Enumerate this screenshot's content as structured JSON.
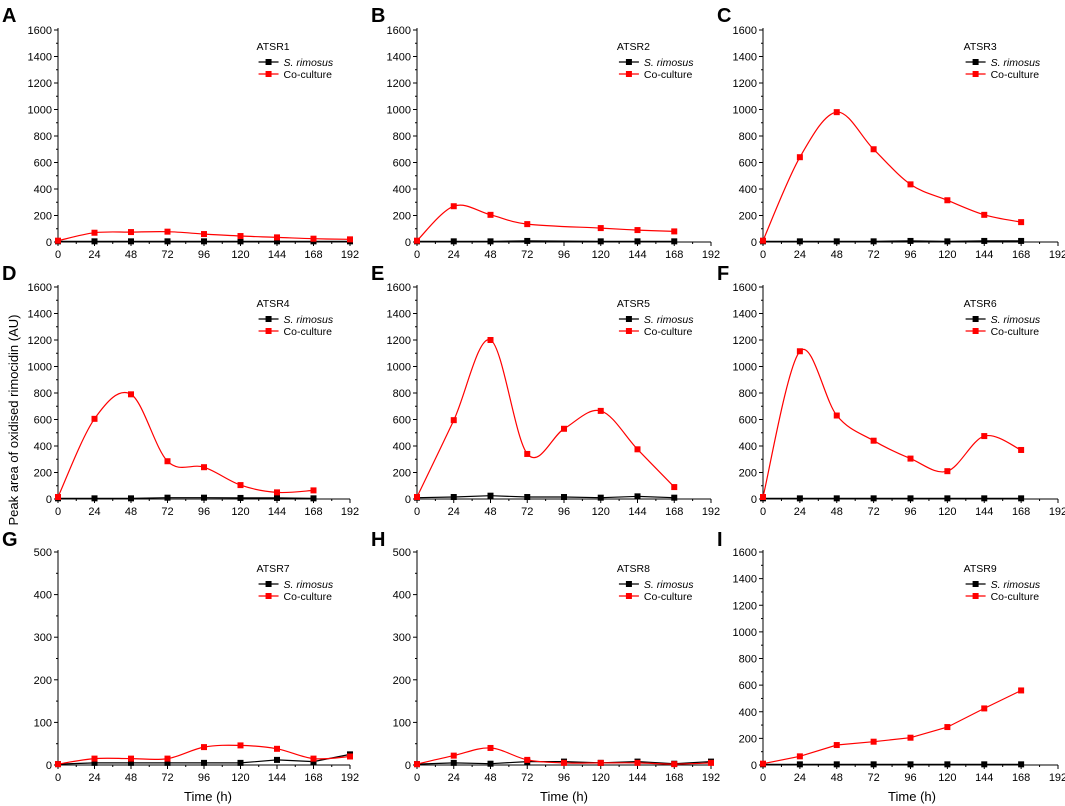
{
  "figure": {
    "ylabel": "Peak area of oxidised rimocidin (AU)",
    "xlabel": "Time (h)",
    "legend_series": [
      "S. rimosus",
      "Co-culture"
    ],
    "colors": {
      "s_rimosus": "#000000",
      "coculture": "#ff0000"
    }
  },
  "chart_data": [
    {
      "panel": "A",
      "type": "line",
      "title": "ATSR1",
      "xlim": [
        0,
        192
      ],
      "xticks": [
        0,
        24,
        48,
        72,
        96,
        120,
        144,
        168,
        192
      ],
      "ylim": [
        0,
        1600
      ],
      "yticks": [
        0,
        200,
        400,
        600,
        800,
        1000,
        1200,
        1400,
        1600
      ],
      "legend_position": "top-right",
      "series": [
        {
          "name": "S. rimosus",
          "style": "line",
          "x": [
            0,
            24,
            48,
            72,
            96,
            120,
            144,
            168,
            192
          ],
          "values": [
            5,
            5,
            5,
            5,
            5,
            5,
            5,
            5,
            5
          ]
        },
        {
          "name": "Co-culture",
          "style": "smooth",
          "x": [
            0,
            24,
            48,
            72,
            96,
            120,
            144,
            168,
            192
          ],
          "values": [
            10,
            70,
            75,
            78,
            60,
            45,
            35,
            25,
            20
          ]
        }
      ]
    },
    {
      "panel": "B",
      "type": "line",
      "title": "ATSR2",
      "xlim": [
        0,
        192
      ],
      "xticks": [
        0,
        24,
        48,
        72,
        96,
        120,
        144,
        168,
        192
      ],
      "ylim": [
        0,
        1600
      ],
      "yticks": [
        0,
        200,
        400,
        600,
        800,
        1000,
        1200,
        1400,
        1600
      ],
      "legend_position": "top-right",
      "series": [
        {
          "name": "S. rimosus",
          "style": "line",
          "x": [
            0,
            24,
            48,
            72,
            120,
            144,
            168
          ],
          "values": [
            5,
            5,
            5,
            8,
            5,
            5,
            5
          ]
        },
        {
          "name": "Co-culture",
          "style": "smooth",
          "x": [
            0,
            24,
            48,
            72,
            120,
            144,
            168
          ],
          "values": [
            10,
            270,
            205,
            135,
            105,
            90,
            80
          ]
        }
      ]
    },
    {
      "panel": "C",
      "type": "line",
      "title": "ATSR3",
      "xlim": [
        0,
        192
      ],
      "xticks": [
        0,
        24,
        48,
        72,
        96,
        120,
        144,
        168,
        192
      ],
      "ylim": [
        0,
        1600
      ],
      "yticks": [
        0,
        200,
        400,
        600,
        800,
        1000,
        1200,
        1400,
        1600
      ],
      "legend_position": "top-right",
      "series": [
        {
          "name": "S. rimosus",
          "style": "line",
          "x": [
            0,
            24,
            48,
            72,
            96,
            120,
            144,
            168
          ],
          "values": [
            5,
            5,
            5,
            5,
            8,
            5,
            8,
            8
          ]
        },
        {
          "name": "Co-culture",
          "style": "smooth",
          "x": [
            0,
            24,
            48,
            72,
            96,
            120,
            144,
            168
          ],
          "values": [
            10,
            640,
            980,
            700,
            435,
            315,
            205,
            150
          ]
        }
      ]
    },
    {
      "panel": "D",
      "type": "line",
      "title": "ATSR4",
      "xlim": [
        0,
        192
      ],
      "xticks": [
        0,
        24,
        48,
        72,
        96,
        120,
        144,
        168,
        192
      ],
      "ylim": [
        0,
        1600
      ],
      "yticks": [
        0,
        200,
        400,
        600,
        800,
        1000,
        1200,
        1400,
        1600
      ],
      "legend_position": "top-right",
      "series": [
        {
          "name": "S. rimosus",
          "style": "line",
          "x": [
            0,
            24,
            48,
            72,
            96,
            120,
            144,
            168
          ],
          "values": [
            5,
            5,
            5,
            10,
            10,
            8,
            8,
            5
          ]
        },
        {
          "name": "Co-culture",
          "style": "smooth",
          "x": [
            0,
            24,
            48,
            72,
            96,
            120,
            144,
            168
          ],
          "values": [
            15,
            605,
            790,
            285,
            240,
            105,
            50,
            65
          ]
        }
      ]
    },
    {
      "panel": "E",
      "type": "line",
      "title": "ATSR5",
      "xlim": [
        0,
        192
      ],
      "xticks": [
        0,
        24,
        48,
        72,
        96,
        120,
        144,
        168,
        192
      ],
      "ylim": [
        0,
        1600
      ],
      "yticks": [
        0,
        200,
        400,
        600,
        800,
        1000,
        1200,
        1400,
        1600
      ],
      "legend_position": "top-right",
      "series": [
        {
          "name": "S. rimosus",
          "style": "line",
          "x": [
            0,
            24,
            48,
            72,
            96,
            120,
            144,
            168
          ],
          "values": [
            10,
            15,
            25,
            15,
            15,
            10,
            20,
            10
          ]
        },
        {
          "name": "Co-culture",
          "style": "smooth",
          "x": [
            0,
            24,
            48,
            72,
            96,
            120,
            144,
            168
          ],
          "values": [
            15,
            595,
            1200,
            340,
            530,
            665,
            375,
            90
          ]
        }
      ]
    },
    {
      "panel": "F",
      "type": "line",
      "title": "ATSR6",
      "xlim": [
        0,
        192
      ],
      "xticks": [
        0,
        24,
        48,
        72,
        96,
        120,
        144,
        168,
        192
      ],
      "ylim": [
        0,
        1600
      ],
      "yticks": [
        0,
        200,
        400,
        600,
        800,
        1000,
        1200,
        1400,
        1600
      ],
      "legend_position": "top-right",
      "series": [
        {
          "name": "S. rimosus",
          "style": "line",
          "x": [
            0,
            24,
            48,
            72,
            96,
            120,
            144,
            168
          ],
          "values": [
            5,
            5,
            5,
            5,
            5,
            5,
            5,
            5
          ]
        },
        {
          "name": "Co-culture",
          "style": "smooth",
          "x": [
            0,
            24,
            48,
            72,
            96,
            120,
            144,
            168
          ],
          "values": [
            15,
            1115,
            630,
            440,
            305,
            210,
            475,
            370
          ]
        }
      ]
    },
    {
      "panel": "G",
      "type": "line",
      "title": "ATSR7",
      "xlim": [
        0,
        192
      ],
      "xticks": [
        0,
        24,
        48,
        72,
        96,
        120,
        144,
        168,
        192
      ],
      "ylim": [
        0,
        500
      ],
      "yticks": [
        0,
        100,
        200,
        300,
        400,
        500
      ],
      "legend_position": "top-right",
      "series": [
        {
          "name": "S. rimosus",
          "style": "line",
          "x": [
            0,
            24,
            48,
            72,
            96,
            120,
            144,
            168,
            192
          ],
          "values": [
            2,
            5,
            5,
            5,
            5,
            5,
            12,
            8,
            25
          ]
        },
        {
          "name": "Co-culture",
          "style": "smooth",
          "x": [
            0,
            24,
            48,
            72,
            96,
            120,
            144,
            168,
            192
          ],
          "values": [
            2,
            15,
            15,
            15,
            42,
            46,
            38,
            15,
            20
          ]
        }
      ]
    },
    {
      "panel": "H",
      "type": "line",
      "title": "ATSR8",
      "xlim": [
        0,
        192
      ],
      "xticks": [
        0,
        24,
        48,
        72,
        96,
        120,
        144,
        168,
        192
      ],
      "ylim": [
        0,
        500
      ],
      "yticks": [
        0,
        100,
        200,
        300,
        400,
        500
      ],
      "legend_position": "top-right",
      "series": [
        {
          "name": "S. rimosus",
          "style": "line",
          "x": [
            0,
            24,
            48,
            72,
            96,
            120,
            144,
            168,
            192
          ],
          "values": [
            2,
            5,
            3,
            8,
            8,
            5,
            8,
            3,
            8
          ]
        },
        {
          "name": "Co-culture",
          "style": "smooth",
          "x": [
            0,
            24,
            48,
            72,
            96,
            120,
            144,
            168,
            192
          ],
          "values": [
            2,
            22,
            40,
            12,
            5,
            5,
            5,
            2,
            5
          ]
        }
      ]
    },
    {
      "panel": "I",
      "type": "line",
      "title": "ATSR9",
      "xlim": [
        0,
        192
      ],
      "xticks": [
        0,
        24,
        48,
        72,
        96,
        120,
        144,
        168,
        192
      ],
      "ylim": [
        0,
        1600
      ],
      "yticks": [
        0,
        200,
        400,
        600,
        800,
        1000,
        1200,
        1400,
        1600
      ],
      "legend_position": "top-right",
      "series": [
        {
          "name": "S. rimosus",
          "style": "line",
          "x": [
            0,
            24,
            48,
            72,
            96,
            120,
            144,
            168
          ],
          "values": [
            5,
            5,
            5,
            5,
            5,
            5,
            5,
            5
          ]
        },
        {
          "name": "Co-culture",
          "style": "line",
          "x": [
            0,
            24,
            48,
            72,
            96,
            120,
            144,
            168
          ],
          "values": [
            10,
            65,
            150,
            175,
            205,
            285,
            425,
            560
          ]
        }
      ]
    }
  ]
}
